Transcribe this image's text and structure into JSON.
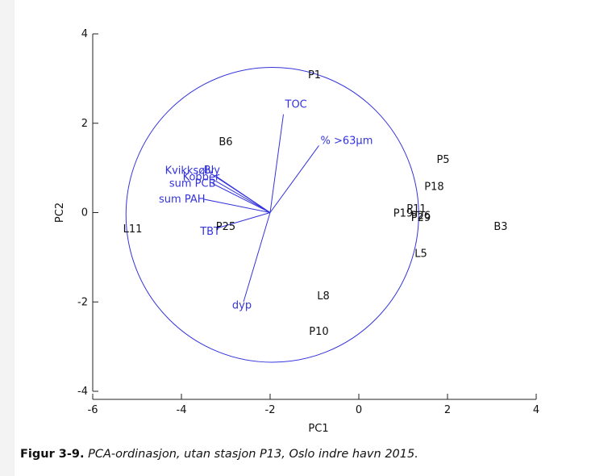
{
  "chart_data": {
    "type": "scatter",
    "xlabel": "PC1",
    "ylabel": "PC2",
    "xlim": [
      -6,
      4
    ],
    "ylim": [
      -4,
      4
    ],
    "xticks": [
      -6,
      -4,
      -2,
      0,
      2,
      4
    ],
    "yticks": [
      -4,
      -2,
      0,
      2,
      4
    ],
    "grid": false,
    "colors": {
      "stations": "#111111",
      "vectors": "#3333dd"
    },
    "circle": {
      "center": [
        -1.95,
        -0.05
      ],
      "radius": 3.3
    },
    "vector_origin": [
      -2.0,
      0.0
    ],
    "stations": [
      {
        "label": "P1",
        "x": -1.0,
        "y": 3.1
      },
      {
        "label": "B6",
        "x": -3.0,
        "y": 1.6
      },
      {
        "label": "P5",
        "x": 1.9,
        "y": 1.2
      },
      {
        "label": "P18",
        "x": 1.7,
        "y": 0.6
      },
      {
        "label": "P19",
        "x": 1.0,
        "y": 0.0
      },
      {
        "label": "P11",
        "x": 1.3,
        "y": 0.1
      },
      {
        "label": "P26",
        "x": 1.4,
        "y": -0.05
      },
      {
        "label": "P29",
        "x": 1.4,
        "y": -0.1
      },
      {
        "label": "B3",
        "x": 3.2,
        "y": -0.3
      },
      {
        "label": "L11",
        "x": -5.1,
        "y": -0.35
      },
      {
        "label": "P25",
        "x": -3.0,
        "y": -0.3
      },
      {
        "label": "L5",
        "x": 1.4,
        "y": -0.9
      },
      {
        "label": "L8",
        "x": -0.8,
        "y": -1.85
      },
      {
        "label": "P10",
        "x": -0.9,
        "y": -2.65
      }
    ],
    "vectors": [
      {
        "label": "TOC",
        "x": -1.7,
        "y": 2.2
      },
      {
        "label": "% >63µm",
        "x": -0.9,
        "y": 1.5
      },
      {
        "label": "Kvikksølv",
        "x": -3.3,
        "y": 0.85
      },
      {
        "label": "Bly",
        "x": -3.2,
        "y": 0.8
      },
      {
        "label": "Kobber",
        "x": -3.25,
        "y": 0.72
      },
      {
        "label": "sum PCB",
        "x": -3.3,
        "y": 0.65
      },
      {
        "label": "sum PAH",
        "x": -3.5,
        "y": 0.3
      },
      {
        "label": "TBT",
        "x": -3.2,
        "y": -0.35
      },
      {
        "label": "dyp",
        "x": -2.6,
        "y": -2.0
      }
    ]
  },
  "caption": {
    "label": "Figur 3-9.",
    "text": "PCA-ordinasjon, utan stasjon P13, Oslo indre havn 2015."
  }
}
